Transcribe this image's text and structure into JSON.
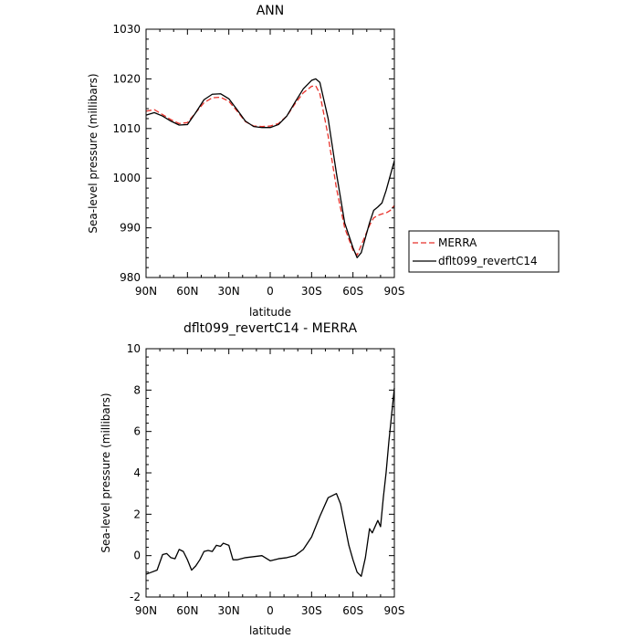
{
  "chart_data": [
    {
      "type": "line",
      "title": "ANN",
      "xlabel": "latitude",
      "ylabel": "Sea-level pressure (millibars)",
      "x_tick_labels": [
        "90N",
        "60N",
        "30N",
        "0",
        "30S",
        "60S",
        "90S"
      ],
      "x_ticks": [
        90,
        60,
        30,
        0,
        -30,
        -60,
        -90
      ],
      "xlim": [
        90,
        -90
      ],
      "ylim": [
        980,
        1030
      ],
      "y_ticks": [
        980,
        990,
        1000,
        1010,
        1020,
        1030
      ],
      "y_tick_labels": [
        "980",
        "990",
        "1000",
        "1010",
        "1020",
        "1030"
      ],
      "grid": false,
      "legend_position": "right",
      "series": [
        {
          "name": "MERRA",
          "color": "#e8312a",
          "style": "dashed",
          "x": [
            90,
            84,
            78,
            72,
            66,
            60,
            54,
            48,
            42,
            36,
            30,
            24,
            18,
            12,
            6,
            0,
            -6,
            -12,
            -18,
            -24,
            -30,
            -33,
            -36,
            -42,
            -48,
            -54,
            -60,
            -63,
            -66,
            -69,
            -72,
            -75,
            -78,
            -81,
            -84,
            -87,
            -90
          ],
          "y": [
            1013.5,
            1013.8,
            1012.8,
            1011.8,
            1011.0,
            1011.2,
            1013.2,
            1015.2,
            1016.2,
            1016.3,
            1015.5,
            1013.5,
            1011.4,
            1010.5,
            1010.4,
            1010.5,
            1011.0,
            1012.5,
            1015.0,
            1017.2,
            1018.5,
            1018.6,
            1017.0,
            1008.5,
            998.0,
            990.0,
            985.5,
            984.5,
            986.5,
            988.5,
            990.5,
            992.0,
            992.5,
            992.8,
            993.0,
            993.5,
            994.5
          ]
        },
        {
          "name": "dflt099_revertC14",
          "color": "#000000",
          "style": "solid",
          "x": [
            90,
            84,
            78,
            72,
            66,
            60,
            54,
            48,
            42,
            36,
            30,
            24,
            18,
            12,
            6,
            0,
            -6,
            -12,
            -18,
            -24,
            -30,
            -33,
            -36,
            -42,
            -48,
            -54,
            -60,
            -63,
            -66,
            -69,
            -72,
            -75,
            -78,
            -81,
            -84,
            -87,
            -90
          ],
          "y": [
            1012.7,
            1013.2,
            1012.5,
            1011.5,
            1010.7,
            1010.8,
            1013.2,
            1015.8,
            1016.9,
            1017.0,
            1016.0,
            1013.8,
            1011.5,
            1010.4,
            1010.2,
            1010.2,
            1010.8,
            1012.5,
            1015.3,
            1018.0,
            1019.7,
            1020.0,
            1019.3,
            1012.0,
            1001.0,
            991.0,
            986.0,
            984.0,
            985.0,
            988.0,
            991.0,
            993.5,
            994.2,
            995.0,
            997.5,
            1000.5,
            1003.5
          ]
        }
      ]
    },
    {
      "type": "line",
      "title": "dflt099_revertC14 - MERRA",
      "xlabel": "latitude",
      "ylabel": "Sea-level pressure (millibars)",
      "x_tick_labels": [
        "90N",
        "60N",
        "30N",
        "0",
        "30S",
        "60S",
        "90S"
      ],
      "x_ticks": [
        90,
        60,
        30,
        0,
        -30,
        -60,
        -90
      ],
      "xlim": [
        90,
        -90
      ],
      "ylim": [
        -2,
        10
      ],
      "y_ticks": [
        -2,
        0,
        2,
        4,
        6,
        8,
        10
      ],
      "y_tick_labels": [
        "-2",
        "0",
        "2",
        "4",
        "6",
        "8",
        "10"
      ],
      "grid": false,
      "series": [
        {
          "name": "",
          "color": "#000000",
          "style": "solid",
          "x": [
            90,
            86,
            82,
            78,
            75,
            72,
            69,
            66,
            63,
            60,
            57,
            54,
            51,
            48,
            45,
            42,
            39,
            36,
            34,
            30,
            27,
            24,
            18,
            12,
            6,
            0,
            -6,
            -12,
            -18,
            -24,
            -30,
            -36,
            -42,
            -48,
            -51,
            -54,
            -57,
            -60,
            -63,
            -66,
            -69,
            -72,
            -74,
            -76,
            -78,
            -80,
            -82,
            -84,
            -86,
            -88,
            -90
          ],
          "y": [
            -0.9,
            -0.8,
            -0.7,
            0.05,
            0.1,
            -0.1,
            -0.15,
            0.3,
            0.2,
            -0.2,
            -0.7,
            -0.5,
            -0.2,
            0.2,
            0.25,
            0.2,
            0.5,
            0.45,
            0.6,
            0.5,
            -0.2,
            -0.2,
            -0.1,
            -0.05,
            0.0,
            -0.25,
            -0.15,
            -0.1,
            0.0,
            0.3,
            0.9,
            1.9,
            2.8,
            3.0,
            2.5,
            1.5,
            0.5,
            -0.2,
            -0.8,
            -1.0,
            -0.1,
            1.3,
            1.1,
            1.4,
            1.7,
            1.4,
            2.8,
            4.0,
            5.5,
            6.8,
            8.1
          ]
        }
      ]
    }
  ]
}
